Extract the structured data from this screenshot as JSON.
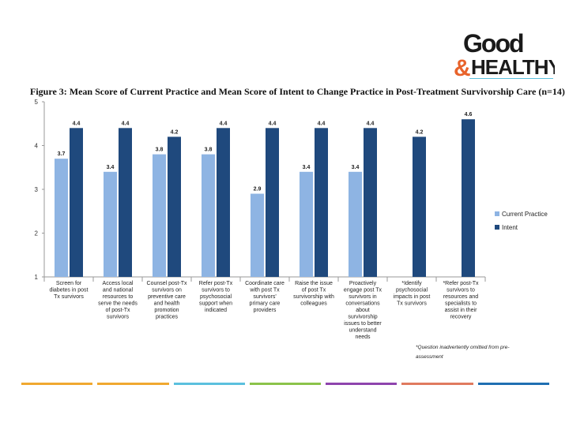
{
  "logo": {
    "line1": "Good",
    "amp": "&",
    "line2": "HEALTHY"
  },
  "chart_data": {
    "type": "bar",
    "title": "Figure 3: Mean Score of Current Practice and Mean Score of Intent to Change Practice in Post-Treatment Survivorship Care (n=14)",
    "categories": [
      [
        "Screen for",
        "diabetes in post",
        "Tx survivors"
      ],
      [
        "Access local",
        "and national",
        "resources to",
        "serve the needs",
        "of post-Tx",
        "survivors"
      ],
      [
        "Counsel post-Tx",
        "survivors on",
        "preventive care",
        "and health",
        "promotion",
        "practices"
      ],
      [
        "Refer post-Tx",
        "survivors to",
        "psychosocial",
        "support when",
        "indicated"
      ],
      [
        "Coordinate care",
        "with post Tx",
        "survivors'",
        "primary care",
        "providers"
      ],
      [
        "Raise the issue",
        "of post Tx",
        "survivorship with",
        "colleagues"
      ],
      [
        "Proactively",
        "engage post Tx",
        "survivors in",
        "conversations",
        "about",
        "survivorship",
        "issues to better",
        "understand",
        "needs"
      ],
      [
        "*Identify",
        "psychosocial",
        "impacts in post",
        "Tx survivors"
      ],
      [
        "*Refer post-Tx",
        "survivors to",
        "resources and",
        "specialists to",
        "assist in their",
        "recovery"
      ]
    ],
    "series": [
      {
        "name": "Current Practice",
        "color": "#8eb4e3",
        "values": [
          3.7,
          3.4,
          3.8,
          3.8,
          2.9,
          3.4,
          3.4,
          null,
          null
        ],
        "labels": [
          "3.7",
          "3.4",
          "3.8",
          "3.8",
          "2.9",
          "3.4",
          "3.4",
          "",
          ""
        ]
      },
      {
        "name": "Intent",
        "color": "#1f497d",
        "values": [
          4.4,
          4.4,
          4.2,
          4.4,
          4.4,
          4.4,
          4.4,
          4.2,
          4.6
        ],
        "labels": [
          "4.4",
          "4.4",
          "4.2",
          "4.4",
          "4.4",
          "4.4",
          "4.4",
          "4.2",
          "4.6"
        ]
      }
    ],
    "ylim": [
      1,
      5
    ],
    "yticks": [
      "1",
      "2",
      "3",
      "4",
      "5"
    ],
    "legend_position": "right",
    "xlabel": "",
    "ylabel": ""
  },
  "footnote": "*Question inadvertently omitted from pre-assessment",
  "bottom_bar_colors": [
    "#f0a830",
    "#f0a830",
    "#5bc0de",
    "#8bc34a",
    "#8e44ad",
    "#e07a5f",
    "#1f6fb2"
  ]
}
